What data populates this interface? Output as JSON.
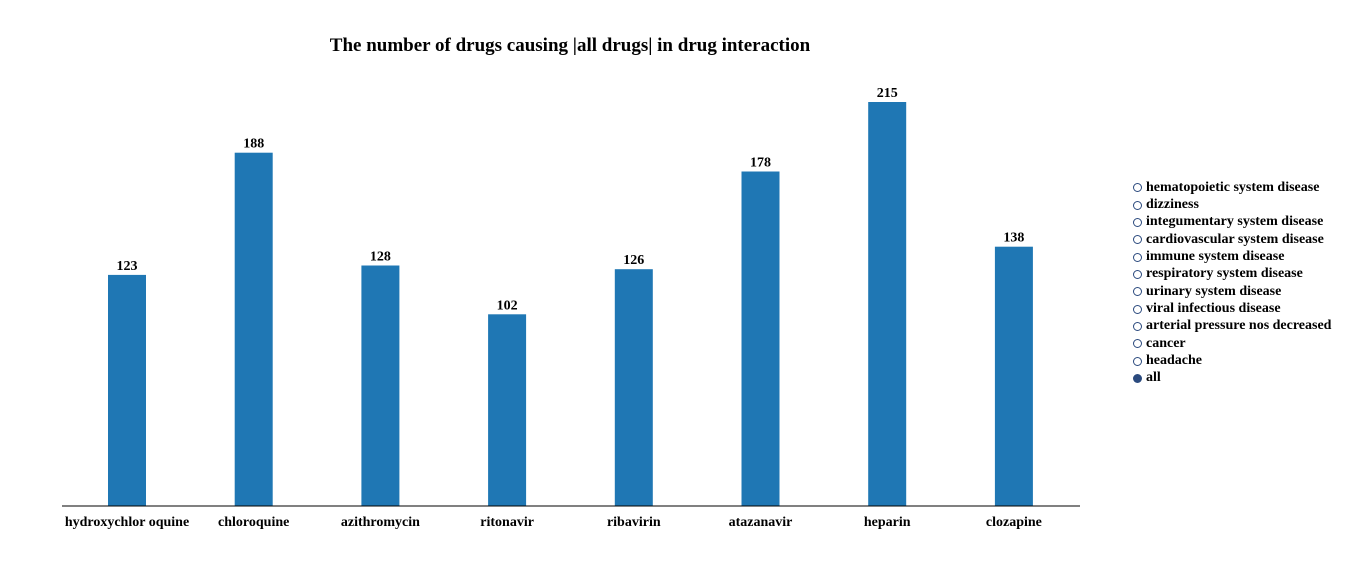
{
  "chart_data": {
    "type": "bar",
    "title": "The number of drugs causing |all drugs| in drug interaction",
    "categories": [
      "hydroxychlor oquine",
      "chloroquine",
      "azithromycin",
      "ritonavir",
      "ribavirin",
      "atazanavir",
      "heparin",
      "clozapine"
    ],
    "values": [
      123,
      188,
      128,
      102,
      126,
      178,
      215,
      138
    ],
    "xlabel": "",
    "ylabel": "",
    "ylim": [
      0,
      215
    ],
    "grid": false,
    "bar_color": "#1f77b4",
    "legend_placement": "right"
  },
  "legend": {
    "items": [
      {
        "label": "hematopoietic system disease",
        "selected": false
      },
      {
        "label": "dizziness",
        "selected": false
      },
      {
        "label": "integumentary system disease",
        "selected": false
      },
      {
        "label": "cardiovascular system disease",
        "selected": false
      },
      {
        "label": "immune system disease",
        "selected": false
      },
      {
        "label": "respiratory system disease",
        "selected": false
      },
      {
        "label": "urinary system disease",
        "selected": false
      },
      {
        "label": "viral infectious disease",
        "selected": false
      },
      {
        "label": "arterial pressure nos decreased",
        "selected": false
      },
      {
        "label": "cancer",
        "selected": false
      },
      {
        "label": "headache",
        "selected": false
      },
      {
        "label": "all",
        "selected": true
      }
    ],
    "marker_color": "#2b4a7e"
  }
}
